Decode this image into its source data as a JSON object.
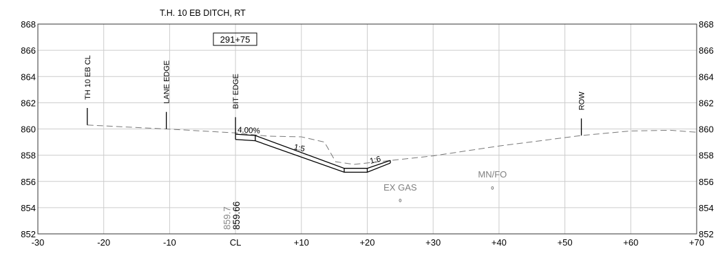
{
  "title": "T.H. 10 EB DITCH, RT",
  "station": "291+75",
  "x_axis": {
    "min": -30,
    "max": 70,
    "step": 10,
    "tick_labels": [
      "-30",
      "-20",
      "-10",
      "CL",
      "+10",
      "+20",
      "+30",
      "+40",
      "+50",
      "+60",
      "+70"
    ]
  },
  "y_axis": {
    "min": 852,
    "max": 868,
    "step": 2,
    "tick_labels": [
      "852",
      "854",
      "856",
      "858",
      "860",
      "862",
      "864",
      "866",
      "868"
    ]
  },
  "markers": [
    {
      "label": "TH 10 EB CL",
      "offset": -22.5,
      "base_elev": 860.3,
      "top_elev": 861.6
    },
    {
      "label": "LANE EDGE",
      "offset": -10.5,
      "base_elev": 860.0,
      "top_elev": 861.3
    },
    {
      "label": "BIT EDGE",
      "offset": 0,
      "base_elev": 859.6,
      "top_elev": 860.9
    },
    {
      "label": "ROW",
      "offset": 52.5,
      "base_elev": 859.5,
      "top_elev": 860.8
    }
  ],
  "existing_ground": [
    [
      -22.5,
      860.3
    ],
    [
      -10.5,
      860.0
    ],
    [
      0,
      859.7
    ],
    [
      5,
      859.45
    ],
    [
      10,
      859.4
    ],
    [
      13.5,
      859.0
    ],
    [
      15.2,
      857.5
    ],
    [
      18,
      857.3
    ],
    [
      30,
      857.95
    ],
    [
      40,
      858.7
    ],
    [
      52.5,
      859.5
    ],
    [
      60,
      859.85
    ],
    [
      66,
      859.9
    ],
    [
      70,
      859.75
    ]
  ],
  "proposed_section": {
    "top": [
      [
        0,
        859.6
      ],
      [
        3,
        859.5
      ],
      [
        16.5,
        857.0
      ],
      [
        20,
        857.0
      ],
      [
        23.5,
        857.6
      ]
    ],
    "bottom": [
      [
        0,
        859.2
      ],
      [
        3,
        859.1
      ],
      [
        16.5,
        856.7
      ],
      [
        20,
        856.7
      ],
      [
        23.5,
        857.4
      ]
    ]
  },
  "slope_labels": [
    {
      "text": "4.00%",
      "offset": 0.3,
      "elev": 859.75,
      "angle": 3
    },
    {
      "text": "1:5",
      "offset": 8.8,
      "elev": 858.45,
      "angle": 12
    },
    {
      "text": "1:6",
      "offset": 20.5,
      "elev": 857.35,
      "angle": -14
    }
  ],
  "utilities": [
    {
      "label": "EX GAS",
      "offset": 25,
      "label_elev": 855.3,
      "symbol_elev": 854.55
    },
    {
      "label": "MN/FO",
      "offset": 39,
      "label_elev": 856.3,
      "symbol_elev": 855.5
    }
  ],
  "elevation_labels": [
    {
      "text": "859.7",
      "offset": -0.8,
      "color": "#888888"
    },
    {
      "text": "859.66",
      "offset": 0.6,
      "color": "#000000"
    }
  ],
  "colors": {
    "grid": "#cccccc",
    "axis": "#333333",
    "existing_ground": "#777777",
    "section": "#000000",
    "utility_text": "#808080"
  }
}
